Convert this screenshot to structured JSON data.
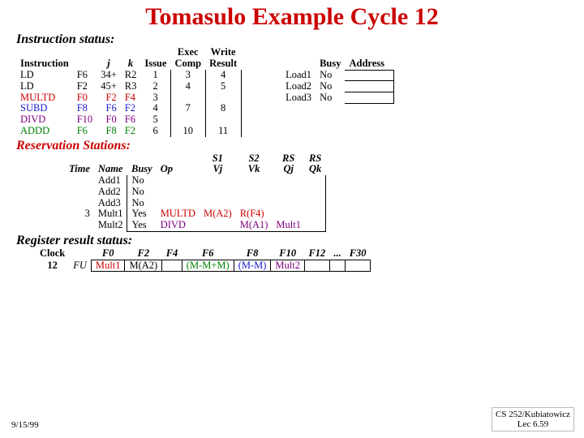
{
  "title": "Tomasulo Example Cycle 12",
  "sections": {
    "instr": "Instruction status:",
    "res": "Reservation Stations:",
    "reg": "Register result status:"
  },
  "instr_hdr": {
    "instr": "Instruction",
    "j": "j",
    "k": "k",
    "issue": "Issue",
    "exec": "Exec Comp",
    "write": "Write Result",
    "busy": "Busy",
    "addr": "Address"
  },
  "instr_rows": [
    {
      "op": "LD",
      "d": "F6",
      "j": "34+",
      "k": "R2",
      "is": "1",
      "ex": "3",
      "wr": "4",
      "unit": "Load1",
      "busy": "No",
      "addr": ""
    },
    {
      "op": "LD",
      "d": "F2",
      "j": "45+",
      "k": "R3",
      "is": "2",
      "ex": "4",
      "wr": "5",
      "unit": "Load2",
      "busy": "No",
      "addr": ""
    },
    {
      "op": "MULTD",
      "d": "F0",
      "j": "F2",
      "k": "F4",
      "is": "3",
      "ex": "",
      "wr": "",
      "unit": "Load3",
      "busy": "No",
      "addr": ""
    },
    {
      "op": "SUBD",
      "d": "F8",
      "j": "F6",
      "k": "F2",
      "is": "4",
      "ex": "7",
      "wr": "8",
      "unit": "",
      "busy": "",
      "addr": ""
    },
    {
      "op": "DIVD",
      "d": "F10",
      "j": "F0",
      "k": "F6",
      "is": "5",
      "ex": "",
      "wr": "",
      "unit": "",
      "busy": "",
      "addr": ""
    },
    {
      "op": "ADDD",
      "d": "F6",
      "j": "F8",
      "k": "F2",
      "is": "6",
      "ex": "10",
      "wr": "11",
      "unit": "",
      "busy": "",
      "addr": ""
    }
  ],
  "res_hdr": {
    "time": "Time",
    "name": "Name",
    "busy": "Busy",
    "op": "Op",
    "s1": "S1",
    "vj": "Vj",
    "s2": "S2",
    "vk": "Vk",
    "rs1": "RS",
    "qj": "Qj",
    "rs2": "RS",
    "qk": "Qk"
  },
  "res_rows": [
    {
      "time": "",
      "name": "Add1",
      "busy": "No",
      "op": "",
      "vj": "",
      "vk": "",
      "qj": "",
      "qk": ""
    },
    {
      "time": "",
      "name": "Add2",
      "busy": "No",
      "op": "",
      "vj": "",
      "vk": "",
      "qj": "",
      "qk": ""
    },
    {
      "time": "",
      "name": "Add3",
      "busy": "No",
      "op": "",
      "vj": "",
      "vk": "",
      "qj": "",
      "qk": ""
    },
    {
      "time": "3",
      "name": "Mult1",
      "busy": "Yes",
      "op": "MULTD",
      "vj": "M(A2)",
      "vk": "R(F4)",
      "qj": "",
      "qk": ""
    },
    {
      "time": "",
      "name": "Mult2",
      "busy": "Yes",
      "op": "DIVD",
      "vj": "",
      "vk": "M(A1)",
      "qj": "Mult1",
      "qk": ""
    }
  ],
  "reg": {
    "clock": "Clock",
    "cyc": "12",
    "fu": "FU",
    "cols": [
      "F0",
      "F2",
      "F4",
      "F6",
      "F8",
      "F10",
      "F12",
      "...",
      "F30"
    ],
    "vals": [
      "Mult1",
      "M(A2)",
      "",
      "(M-M+M)",
      "(M-M)",
      "Mult2",
      "",
      "",
      ""
    ]
  },
  "colors": {
    "instr_op": [
      "#000",
      "#000",
      "#cc0000",
      "#1a1acc",
      "#800080",
      "#008000"
    ],
    "res_op": [
      "",
      "",
      "",
      "#cc0000",
      "#800080"
    ],
    "res_vj": [
      "",
      "",
      "",
      "#cc0000",
      ""
    ],
    "res_vk": [
      "",
      "",
      "",
      "#cc0000",
      "#800080"
    ],
    "res_qj": [
      "",
      "",
      "",
      "",
      "#800080"
    ],
    "reg_vals": [
      "#cc0000",
      "#000",
      "#000",
      "#008000",
      "#1a1acc",
      "#800080",
      "#000",
      "#000",
      "#000"
    ]
  },
  "footer": {
    "date": "9/15/99",
    "r1": "CS 252/Kubiatowicz",
    "r2": "Lec 6.59"
  }
}
